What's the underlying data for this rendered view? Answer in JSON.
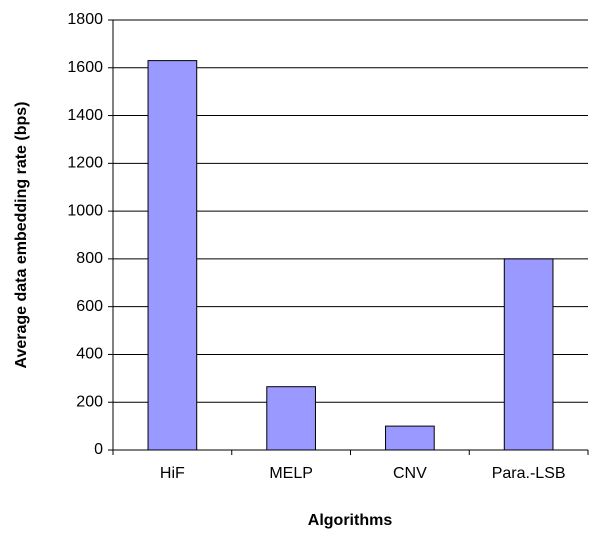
{
  "chart_data": {
    "type": "bar",
    "categories": [
      "HiF",
      "MELP",
      "CNV",
      "Para.-LSB"
    ],
    "values": [
      1630,
      265,
      100,
      800
    ],
    "color": "#9999ff",
    "xlabel": "Algorithms",
    "ylabel": "Average data embedding rate (bps)",
    "ylim": [
      0,
      1800
    ],
    "yticks": [
      0,
      200,
      400,
      600,
      800,
      1000,
      1200,
      1400,
      1600,
      1800
    ],
    "grid": true
  }
}
